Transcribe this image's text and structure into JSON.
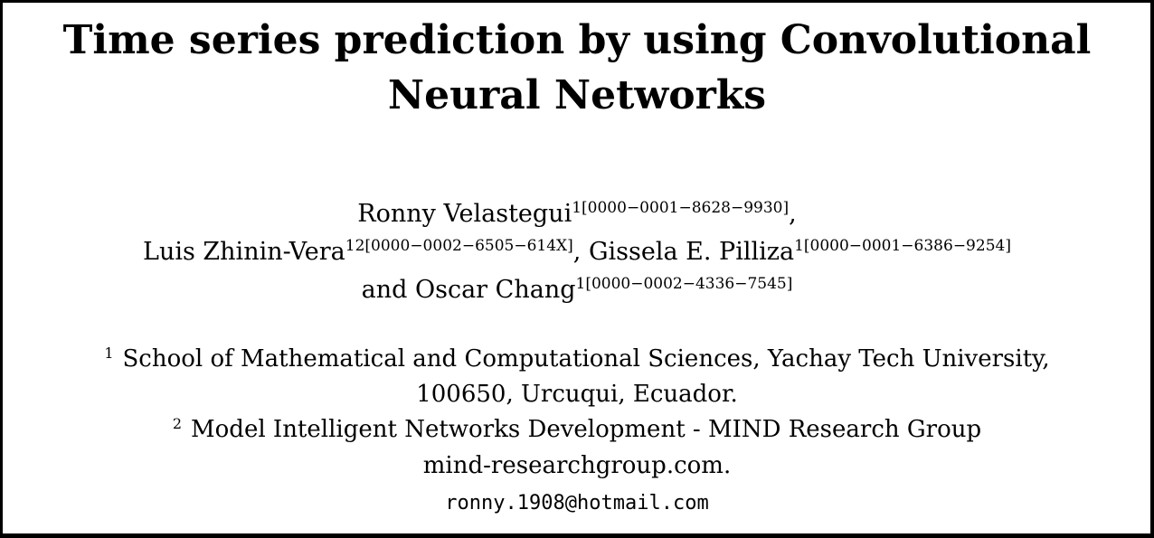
{
  "paper": {
    "title_line1": "Time series prediction by using Convolutional",
    "title_line2": "Neural Networks",
    "authors": [
      {
        "name": "Ronny Velastegui",
        "aff": "1",
        "orcid": "[0000−0001−8628−9930]"
      },
      {
        "name": "Luis Zhinin-Vera",
        "aff": "12",
        "orcid": "[0000−0002−6505−614X]"
      },
      {
        "name": "Gissela E. Pilliza",
        "aff": "1",
        "orcid": "[0000−0001−6386−9254]"
      },
      {
        "name": "Oscar Chang",
        "aff": "1",
        "orcid": "[0000−0002−4336−7545]"
      }
    ],
    "separators": {
      "comma": ",",
      "and": "and"
    },
    "affiliations": [
      {
        "mark": "1",
        "line1": "School of Mathematical and Computational Sciences, Yachay Tech University,",
        "line2": "100650, Urcuqui, Ecuador."
      },
      {
        "mark": "2",
        "line1": "Model Intelligent Networks Development - MIND Research Group",
        "line2": "mind-researchgroup.com."
      }
    ],
    "email": "ronny.1908@hotmail.com"
  }
}
